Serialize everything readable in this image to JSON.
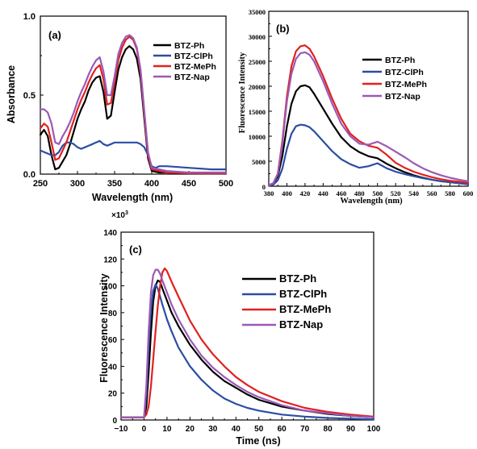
{
  "chart_data": [
    {
      "id": "a",
      "type": "line",
      "panel_label": "(a)",
      "xlabel": "Wavelength (nm)",
      "ylabel": "Absorbance",
      "xlim": [
        250,
        500
      ],
      "ylim": [
        0,
        1.0
      ],
      "xticks": [
        "250",
        "300",
        "350",
        "400",
        "450",
        "500"
      ],
      "yticks": [
        "0.0",
        "0.5",
        "1.0"
      ],
      "legend_position": "top-right",
      "series": [
        {
          "name": "BTZ-Ph",
          "color": "#000000",
          "x": [
            250,
            255,
            260,
            265,
            270,
            275,
            280,
            285,
            290,
            295,
            300,
            305,
            310,
            315,
            320,
            325,
            330,
            335,
            340,
            345,
            350,
            355,
            360,
            365,
            370,
            375,
            380,
            385,
            390,
            395,
            400,
            410,
            420,
            450,
            480,
            500
          ],
          "y": [
            0.25,
            0.28,
            0.24,
            0.12,
            0.03,
            0.04,
            0.08,
            0.12,
            0.19,
            0.27,
            0.35,
            0.41,
            0.46,
            0.53,
            0.58,
            0.61,
            0.62,
            0.52,
            0.35,
            0.37,
            0.52,
            0.66,
            0.74,
            0.79,
            0.81,
            0.79,
            0.73,
            0.6,
            0.35,
            0.1,
            0.02,
            0.01,
            0.01,
            0.005,
            0.004,
            0.004
          ]
        },
        {
          "name": "BTZ-ClPh",
          "color": "#2b4da3",
          "x": [
            250,
            255,
            260,
            265,
            270,
            275,
            280,
            285,
            290,
            295,
            300,
            305,
            310,
            315,
            320,
            325,
            330,
            335,
            340,
            345,
            350,
            355,
            360,
            365,
            370,
            375,
            380,
            385,
            390,
            395,
            400,
            405,
            410,
            420,
            450,
            480,
            500
          ],
          "y": [
            0.15,
            0.14,
            0.13,
            0.12,
            0.12,
            0.14,
            0.18,
            0.2,
            0.2,
            0.19,
            0.17,
            0.16,
            0.17,
            0.18,
            0.19,
            0.2,
            0.21,
            0.19,
            0.18,
            0.19,
            0.2,
            0.2,
            0.2,
            0.2,
            0.2,
            0.2,
            0.2,
            0.19,
            0.17,
            0.12,
            0.05,
            0.04,
            0.05,
            0.05,
            0.04,
            0.03,
            0.03
          ]
        },
        {
          "name": "BTZ-MePh",
          "color": "#e02020",
          "x": [
            250,
            255,
            260,
            265,
            270,
            275,
            280,
            285,
            290,
            295,
            300,
            305,
            310,
            315,
            320,
            325,
            330,
            335,
            340,
            345,
            350,
            355,
            360,
            365,
            370,
            375,
            380,
            385,
            390,
            395,
            400,
            410,
            420,
            450,
            480,
            500
          ],
          "y": [
            0.29,
            0.32,
            0.3,
            0.2,
            0.09,
            0.1,
            0.15,
            0.2,
            0.27,
            0.34,
            0.41,
            0.47,
            0.52,
            0.58,
            0.63,
            0.67,
            0.69,
            0.6,
            0.44,
            0.45,
            0.58,
            0.72,
            0.8,
            0.85,
            0.87,
            0.85,
            0.79,
            0.64,
            0.38,
            0.12,
            0.03,
            0.02,
            0.01,
            0.005,
            0.004,
            0.004
          ]
        },
        {
          "name": "BTZ-Nap",
          "color": "#9b59b6",
          "x": [
            250,
            255,
            260,
            265,
            270,
            275,
            280,
            285,
            290,
            295,
            300,
            305,
            310,
            315,
            320,
            325,
            330,
            335,
            340,
            345,
            350,
            355,
            360,
            365,
            370,
            375,
            380,
            385,
            390,
            395,
            400,
            410,
            420,
            450,
            480,
            500
          ],
          "y": [
            0.41,
            0.41,
            0.39,
            0.32,
            0.2,
            0.19,
            0.24,
            0.28,
            0.33,
            0.39,
            0.46,
            0.52,
            0.57,
            0.63,
            0.68,
            0.72,
            0.74,
            0.65,
            0.5,
            0.5,
            0.62,
            0.76,
            0.83,
            0.87,
            0.88,
            0.86,
            0.8,
            0.66,
            0.4,
            0.14,
            0.04,
            0.03,
            0.02,
            0.01,
            0.01,
            0.01
          ]
        }
      ]
    },
    {
      "id": "b",
      "type": "line",
      "panel_label": "(b)",
      "xlabel": "Wavelength (nm)",
      "ylabel": "Fluorescence Intensity",
      "xlim": [
        380,
        600
      ],
      "ylim": [
        0,
        35000
      ],
      "xticks": [
        "380",
        "400",
        "420",
        "440",
        "460",
        "480",
        "500",
        "520",
        "540",
        "560",
        "580",
        "600"
      ],
      "yticks": [
        "0",
        "5000",
        "10000",
        "15000",
        "20000",
        "25000",
        "30000",
        "35000"
      ],
      "legend_position": "top-right",
      "series": [
        {
          "name": "BTZ-Ph",
          "color": "#000000",
          "x": [
            380,
            385,
            390,
            395,
            400,
            405,
            410,
            415,
            420,
            425,
            430,
            440,
            450,
            460,
            470,
            480,
            490,
            500,
            510,
            520,
            530,
            540,
            550,
            560,
            570,
            580,
            590,
            600
          ],
          "y": [
            200,
            500,
            2000,
            6000,
            12000,
            16500,
            19000,
            20000,
            20200,
            19800,
            18500,
            15500,
            12500,
            9800,
            8000,
            6800,
            6000,
            5600,
            4500,
            3600,
            2800,
            2200,
            1700,
            1300,
            1000,
            800,
            600,
            400
          ]
        },
        {
          "name": "BTZ-ClPh",
          "color": "#2b4da3",
          "x": [
            380,
            385,
            390,
            395,
            400,
            405,
            410,
            415,
            420,
            425,
            430,
            440,
            450,
            460,
            470,
            480,
            490,
            500,
            510,
            520,
            530,
            540,
            550,
            560,
            570,
            580,
            590,
            600
          ],
          "y": [
            100,
            300,
            1200,
            3500,
            7500,
            10500,
            12000,
            12300,
            12200,
            11800,
            11000,
            9000,
            7000,
            5400,
            4400,
            3700,
            4000,
            4600,
            3600,
            2900,
            2400,
            2000,
            1600,
            1300,
            1000,
            800,
            600,
            400
          ]
        },
        {
          "name": "BTZ-MePh",
          "color": "#e02020",
          "x": [
            380,
            385,
            390,
            395,
            400,
            405,
            410,
            415,
            420,
            425,
            430,
            440,
            450,
            460,
            470,
            480,
            490,
            500,
            510,
            520,
            530,
            540,
            550,
            560,
            570,
            580,
            590,
            600
          ],
          "y": [
            200,
            600,
            2500,
            9000,
            18000,
            24000,
            27000,
            28000,
            28200,
            27500,
            26000,
            22000,
            17500,
            13500,
            10500,
            9000,
            8100,
            7700,
            6300,
            4700,
            3700,
            2900,
            2300,
            1800,
            1400,
            1100,
            900,
            700
          ]
        },
        {
          "name": "BTZ-Nap",
          "color": "#9b59b6",
          "x": [
            380,
            385,
            390,
            395,
            400,
            405,
            410,
            415,
            420,
            425,
            430,
            440,
            450,
            460,
            470,
            480,
            490,
            500,
            510,
            520,
            530,
            540,
            550,
            560,
            570,
            580,
            590,
            600
          ],
          "y": [
            200,
            600,
            2400,
            8500,
            17000,
            22500,
            25500,
            26600,
            26800,
            26300,
            25000,
            21000,
            16500,
            12500,
            10000,
            8500,
            8300,
            8900,
            8000,
            6900,
            5800,
            4600,
            3600,
            2800,
            2200,
            1700,
            1300,
            1000
          ]
        }
      ]
    },
    {
      "id": "c",
      "type": "line",
      "panel_label": "(c)",
      "xlabel": "Time (ns)",
      "ylabel": "Fluorescence Intensity",
      "y_multiplier": "×10",
      "y_multiplier_exp": "3",
      "xlim": [
        -10,
        100
      ],
      "ylim": [
        0,
        140
      ],
      "xticks": [
        "−10",
        "0",
        "10",
        "20",
        "30",
        "40",
        "50",
        "60",
        "70",
        "80",
        "90",
        "100"
      ],
      "yticks": [
        "0",
        "20",
        "40",
        "60",
        "80",
        "100",
        "120",
        "140"
      ],
      "legend_position": "right",
      "series": [
        {
          "name": "BTZ-Ph",
          "color": "#000000",
          "x": [
            -10,
            0,
            1,
            2,
            3,
            4,
            5,
            6,
            7,
            8,
            10,
            12,
            15,
            20,
            25,
            30,
            35,
            40,
            45,
            50,
            60,
            70,
            80,
            90,
            100
          ],
          "y": [
            2,
            2,
            10,
            35,
            65,
            88,
            100,
            104,
            103,
            98,
            89,
            80,
            70,
            56,
            45,
            36,
            29,
            24,
            19,
            15,
            10,
            7,
            4.5,
            3,
            2
          ]
        },
        {
          "name": "BTZ-ClPh",
          "color": "#2b4da3",
          "x": [
            -10,
            0,
            1,
            2,
            3,
            4,
            5,
            6,
            7,
            8,
            10,
            12,
            15,
            20,
            25,
            30,
            35,
            40,
            45,
            50,
            60,
            70,
            80,
            90,
            100
          ],
          "y": [
            2,
            2,
            20,
            55,
            82,
            96,
            101,
            98,
            92,
            86,
            75,
            66,
            54,
            40,
            30,
            22,
            16,
            12,
            9,
            7,
            4,
            2.5,
            1.5,
            1,
            0.5
          ]
        },
        {
          "name": "BTZ-MePh",
          "color": "#e02020",
          "x": [
            -10,
            0,
            1,
            2,
            3,
            4,
            5,
            6,
            7,
            8,
            9,
            10,
            12,
            15,
            20,
            25,
            30,
            35,
            40,
            45,
            50,
            60,
            70,
            80,
            90,
            100
          ],
          "y": [
            2,
            2,
            4,
            10,
            25,
            45,
            66,
            85,
            100,
            110,
            113,
            111,
            103,
            92,
            74,
            60,
            49,
            40,
            32,
            26,
            21,
            14,
            9,
            6,
            4,
            2.5
          ]
        },
        {
          "name": "BTZ-Nap",
          "color": "#9b59b6",
          "x": [
            -10,
            0,
            1,
            2,
            3,
            4,
            5,
            6,
            7,
            8,
            10,
            12,
            15,
            20,
            25,
            30,
            35,
            40,
            45,
            50,
            60,
            70,
            80,
            90,
            100
          ],
          "y": [
            2,
            2,
            25,
            65,
            95,
            108,
            112,
            112,
            109,
            104,
            95,
            86,
            75,
            60,
            48,
            39,
            32,
            26,
            21,
            17,
            11,
            7,
            5,
            3,
            2
          ]
        }
      ]
    }
  ]
}
